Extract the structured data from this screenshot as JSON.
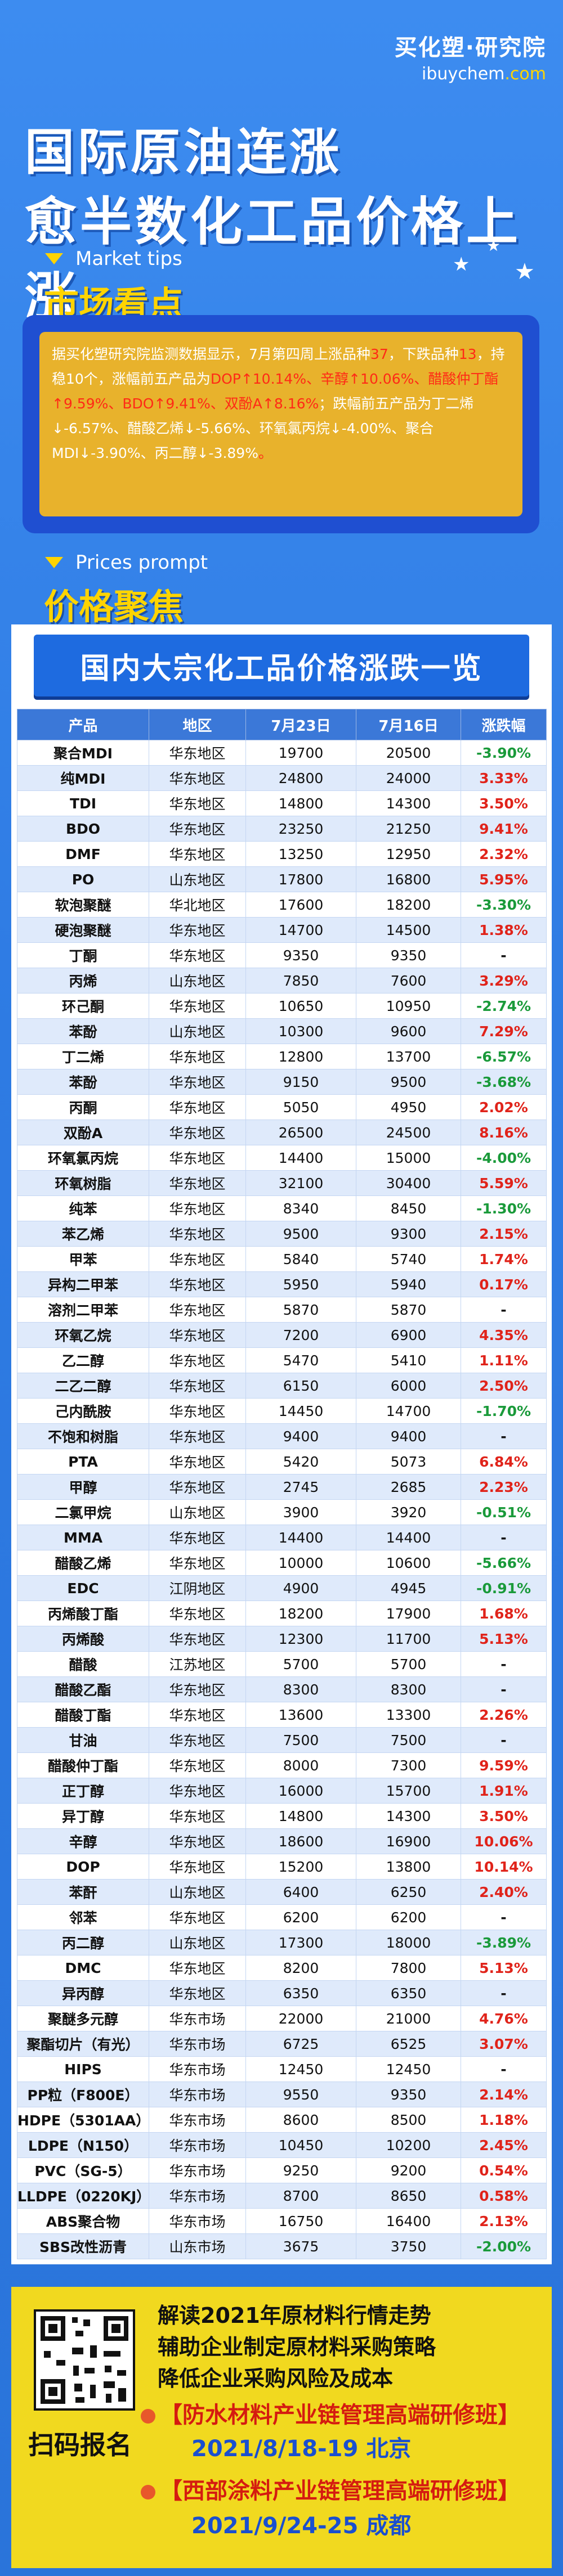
{
  "brand": {
    "cn": "买化塑·研究院",
    "en_main": "ibuychem",
    "en_suffix": ".com"
  },
  "title_line1": "国际原油连涨",
  "title_line2": "愈半数化工品价格上涨",
  "market": {
    "tag_en": "Market tips",
    "title": "市场看点",
    "text_parts": [
      {
        "t": "据买化塑研究院监测数据显示，7月第四周上涨品种",
        "c": "n"
      },
      {
        "t": "37",
        "c": "h"
      },
      {
        "t": "，下跌品种",
        "c": "n"
      },
      {
        "t": "13",
        "c": "h"
      },
      {
        "t": "，持稳10个，涨幅前五产品为",
        "c": "n"
      },
      {
        "t": "DOP↑10.14%、辛醇↑10.06%、醋酸仲丁酯↑9.59%、BDO↑9.41%、双酚A↑8.16%",
        "c": "h"
      },
      {
        "t": "；跌幅前五产品为丁二烯↓-6.57%、醋酸乙烯↓-5.66%、环氧氯丙烷↓-4.00%、聚合MDI↓-3.90%、丙二醇↓-3.89%",
        "c": "n"
      },
      {
        "t": "。",
        "c": "h"
      }
    ]
  },
  "prices": {
    "tag_en": "Prices prompt",
    "title": "价格聚焦",
    "panel_title": "国内大宗化工品价格涨跌一览",
    "headers": [
      "产品",
      "地区",
      "7月23日",
      "7月16日",
      "涨跌幅"
    ],
    "rows": [
      [
        "聚合MDI",
        "华东地区",
        "19700",
        "20500",
        "-3.90%"
      ],
      [
        "纯MDI",
        "华东地区",
        "24800",
        "24000",
        "3.33%"
      ],
      [
        "TDI",
        "华东地区",
        "14800",
        "14300",
        "3.50%"
      ],
      [
        "BDO",
        "华东地区",
        "23250",
        "21250",
        "9.41%"
      ],
      [
        "DMF",
        "华东地区",
        "13250",
        "12950",
        "2.32%"
      ],
      [
        "PO",
        "山东地区",
        "17800",
        "16800",
        "5.95%"
      ],
      [
        "软泡聚醚",
        "华北地区",
        "17600",
        "18200",
        "-3.30%"
      ],
      [
        "硬泡聚醚",
        "华东地区",
        "14700",
        "14500",
        "1.38%"
      ],
      [
        "丁酮",
        "华东地区",
        "9350",
        "9350",
        "-"
      ],
      [
        "丙烯",
        "山东地区",
        "7850",
        "7600",
        "3.29%"
      ],
      [
        "环己酮",
        "华东地区",
        "10650",
        "10950",
        "-2.74%"
      ],
      [
        "苯酚",
        "山东地区",
        "10300",
        "9600",
        "7.29%"
      ],
      [
        "丁二烯",
        "华东地区",
        "12800",
        "13700",
        "-6.57%"
      ],
      [
        "苯酚",
        "华东地区",
        "9150",
        "9500",
        "-3.68%"
      ],
      [
        "丙酮",
        "华东地区",
        "5050",
        "4950",
        "2.02%"
      ],
      [
        "双酚A",
        "华东地区",
        "26500",
        "24500",
        "8.16%"
      ],
      [
        "环氧氯丙烷",
        "华东地区",
        "14400",
        "15000",
        "-4.00%"
      ],
      [
        "环氧树脂",
        "华东地区",
        "32100",
        "30400",
        "5.59%"
      ],
      [
        "纯苯",
        "华东地区",
        "8340",
        "8450",
        "-1.30%"
      ],
      [
        "苯乙烯",
        "华东地区",
        "9500",
        "9300",
        "2.15%"
      ],
      [
        "甲苯",
        "华东地区",
        "5840",
        "5740",
        "1.74%"
      ],
      [
        "异构二甲苯",
        "华东地区",
        "5950",
        "5940",
        "0.17%"
      ],
      [
        "溶剂二甲苯",
        "华东地区",
        "5870",
        "5870",
        "-"
      ],
      [
        "环氧乙烷",
        "华东地区",
        "7200",
        "6900",
        "4.35%"
      ],
      [
        "乙二醇",
        "华东地区",
        "5470",
        "5410",
        "1.11%"
      ],
      [
        "二乙二醇",
        "华东地区",
        "6150",
        "6000",
        "2.50%"
      ],
      [
        "己内酰胺",
        "华东地区",
        "14450",
        "14700",
        "-1.70%"
      ],
      [
        "不饱和树脂",
        "华东地区",
        "9400",
        "9400",
        "-"
      ],
      [
        "PTA",
        "华东地区",
        "5420",
        "5073",
        "6.84%"
      ],
      [
        "甲醇",
        "华东地区",
        "2745",
        "2685",
        "2.23%"
      ],
      [
        "二氯甲烷",
        "山东地区",
        "3900",
        "3920",
        "-0.51%"
      ],
      [
        "MMA",
        "华东地区",
        "14400",
        "14400",
        "-"
      ],
      [
        "醋酸乙烯",
        "华东地区",
        "10000",
        "10600",
        "-5.66%"
      ],
      [
        "EDC",
        "江阴地区",
        "4900",
        "4945",
        "-0.91%"
      ],
      [
        "丙烯酸丁酯",
        "华东地区",
        "18200",
        "17900",
        "1.68%"
      ],
      [
        "丙烯酸",
        "华东地区",
        "12300",
        "11700",
        "5.13%"
      ],
      [
        "醋酸",
        "江苏地区",
        "5700",
        "5700",
        "-"
      ],
      [
        "醋酸乙酯",
        "华东地区",
        "8300",
        "8300",
        "-"
      ],
      [
        "醋酸丁酯",
        "华东地区",
        "13600",
        "13300",
        "2.26%"
      ],
      [
        "甘油",
        "华东地区",
        "7500",
        "7500",
        "-"
      ],
      [
        "醋酸仲丁酯",
        "华东地区",
        "8000",
        "7300",
        "9.59%"
      ],
      [
        "正丁醇",
        "华东地区",
        "16000",
        "15700",
        "1.91%"
      ],
      [
        "异丁醇",
        "华东地区",
        "14800",
        "14300",
        "3.50%"
      ],
      [
        "辛醇",
        "华东地区",
        "18600",
        "16900",
        "10.06%"
      ],
      [
        "DOP",
        "华东地区",
        "15200",
        "13800",
        "10.14%"
      ],
      [
        "苯酐",
        "山东地区",
        "6400",
        "6250",
        "2.40%"
      ],
      [
        "邻苯",
        "华东地区",
        "6200",
        "6200",
        "-"
      ],
      [
        "丙二醇",
        "山东地区",
        "17300",
        "18000",
        "-3.89%"
      ],
      [
        "DMC",
        "华东地区",
        "8200",
        "7800",
        "5.13%"
      ],
      [
        "异丙醇",
        "华东地区",
        "6350",
        "6350",
        "-"
      ],
      [
        "聚醚多元醇",
        "华东市场",
        "22000",
        "21000",
        "4.76%"
      ],
      [
        "聚酯切片（有光）",
        "华东市场",
        "6725",
        "6525",
        "3.07%"
      ],
      [
        "HIPS",
        "华东市场",
        "12450",
        "12450",
        "-"
      ],
      [
        "PP粒（F800E）",
        "华东市场",
        "9550",
        "9350",
        "2.14%"
      ],
      [
        "HDPE（5301AA）",
        "华东市场",
        "8600",
        "8500",
        "1.18%"
      ],
      [
        "LDPE（N150）",
        "华东市场",
        "10450",
        "10200",
        "2.45%"
      ],
      [
        "PVC（SG-5）",
        "华东市场",
        "9250",
        "9200",
        "0.54%"
      ],
      [
        "LLDPE（0220KJ）",
        "华东市场",
        "8700",
        "8650",
        "0.58%"
      ],
      [
        "ABS聚合物",
        "华东市场",
        "16750",
        "16400",
        "2.13%"
      ],
      [
        "SBS改性沥青",
        "山东市场",
        "3675",
        "3750",
        "-2.00%"
      ]
    ]
  },
  "footer": {
    "qr_label": "扫码报名",
    "lines": [
      "解读2021年原材料行情走势",
      "辅助企业制定原材料采购策略",
      "降低企业采购风险及成本"
    ],
    "event1_title": "【防水材料产业链管理高端研修班】",
    "event1_date": "2021/8/18-19  北京",
    "event2_title": "【西部涂料产业链管理高端研修班】",
    "event2_date": "2021/9/24-25  成都"
  },
  "colors": {
    "up": "#e0231a",
    "down": "#1a9a3a",
    "accent": "#ffd400",
    "panel_head": "#1e6be0"
  }
}
